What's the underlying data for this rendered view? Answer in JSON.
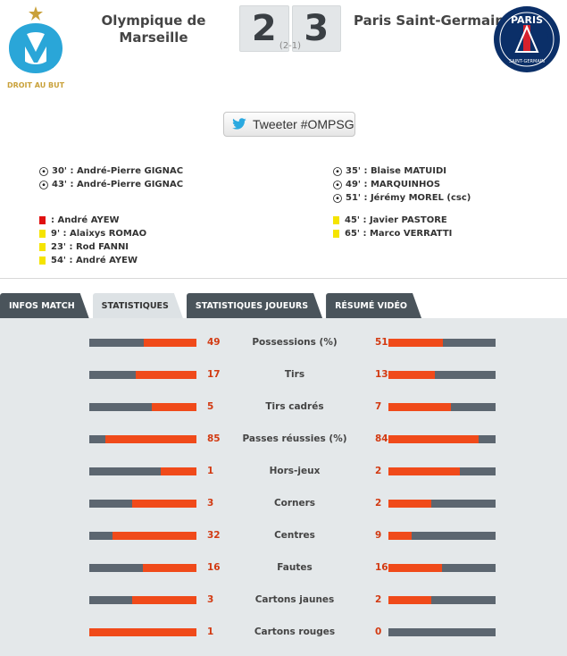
{
  "match": {
    "home_team": "Olympique de Marseille",
    "away_team": "Paris Saint-Germain",
    "home_score": "2",
    "away_score": "3",
    "halftime": "(2-1)",
    "home_motto": "DROIT AU BUT",
    "away_logo_text": "PARIS",
    "away_logo_sub": "SAINT-GERMAIN"
  },
  "tweet": {
    "label": "Tweeter #OMPSG"
  },
  "events": {
    "home_goals": [
      "30' : André-Pierre GIGNAC",
      "43' : André-Pierre GIGNAC"
    ],
    "away_goals": [
      "35' : Blaise MATUIDI",
      "49' : MARQUINHOS",
      "51' : Jérémy MOREL (csc)"
    ],
    "home_cards": [
      {
        "type": "red",
        "text": ": André AYEW"
      },
      {
        "type": "yellow",
        "text": "9' : Alaixys ROMAO"
      },
      {
        "type": "yellow",
        "text": "23' : Rod FANNI"
      },
      {
        "type": "yellow",
        "text": "54' : André AYEW"
      }
    ],
    "away_cards": [
      {
        "type": "yellow",
        "text": "45' : Javier PASTORE"
      },
      {
        "type": "yellow",
        "text": "65' : Marco VERRATTI"
      }
    ]
  },
  "tabs": [
    {
      "label": "INFOS MATCH",
      "active": false
    },
    {
      "label": "STATISTIQUES",
      "active": true
    },
    {
      "label": "STATISTIQUES JOUEURS",
      "active": false
    },
    {
      "label": "RÉSUMÉ VIDÉO",
      "active": false
    }
  ],
  "stats": [
    {
      "label": "Possessions (%)",
      "home": "49",
      "away": "51",
      "home_fill": 0.49,
      "away_fill": 0.51
    },
    {
      "label": "Tirs",
      "home": "17",
      "away": "13",
      "home_fill": 0.57,
      "away_fill": 0.43
    },
    {
      "label": "Tirs cadrés",
      "home": "5",
      "away": "7",
      "home_fill": 0.42,
      "away_fill": 0.58
    },
    {
      "label": "Passes réussies (%)",
      "home": "85",
      "away": "84",
      "home_fill": 0.85,
      "away_fill": 0.84
    },
    {
      "label": "Hors-jeux",
      "home": "1",
      "away": "2",
      "home_fill": 0.33,
      "away_fill": 0.67
    },
    {
      "label": "Corners",
      "home": "3",
      "away": "2",
      "home_fill": 0.6,
      "away_fill": 0.4
    },
    {
      "label": "Centres",
      "home": "32",
      "away": "9",
      "home_fill": 0.78,
      "away_fill": 0.22
    },
    {
      "label": "Fautes",
      "home": "16",
      "away": "16",
      "home_fill": 0.5,
      "away_fill": 0.5
    },
    {
      "label": "Cartons jaunes",
      "home": "3",
      "away": "2",
      "home_fill": 0.6,
      "away_fill": 0.4
    },
    {
      "label": "Cartons rouges",
      "home": "1",
      "away": "0",
      "home_fill": 1.0,
      "away_fill": 0.0
    }
  ],
  "colors": {
    "accent": "#f04a1a",
    "bar_bg": "#5c6670",
    "tab_dark": "#4a545b",
    "tab_active": "#dde2e5",
    "om_blue": "#2aa6d8",
    "psg_navy": "#0b2f68",
    "psg_red": "#d6202c"
  }
}
